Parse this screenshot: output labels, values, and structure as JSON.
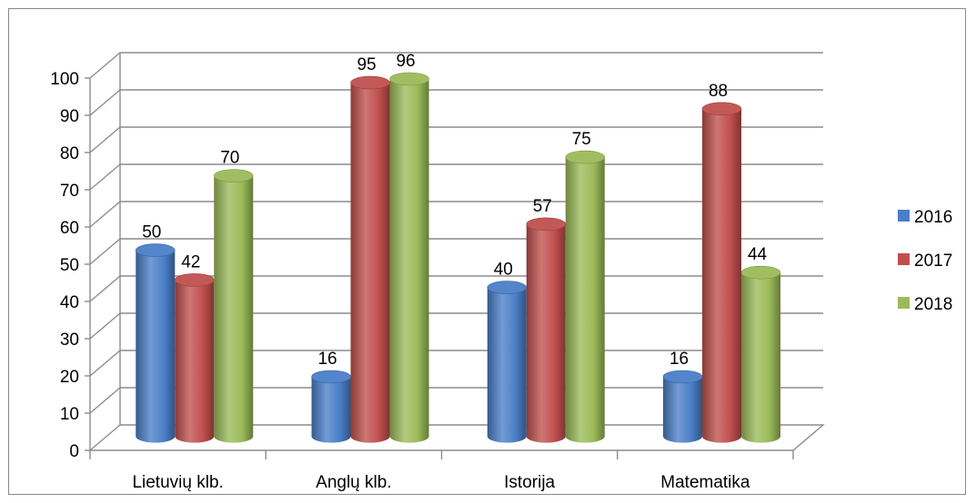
{
  "chart_data": {
    "type": "bar",
    "title": "",
    "xlabel": "",
    "ylabel": "",
    "ylim": [
      0,
      100
    ],
    "yticks": [
      0,
      10,
      20,
      30,
      40,
      50,
      60,
      70,
      80,
      90,
      100
    ],
    "grid": true,
    "legend_position": "right",
    "categories": [
      "Lietuvių klb.",
      "Anglų klb.",
      "Istorija",
      "Matematika"
    ],
    "series": [
      {
        "name": "2016",
        "color": "#4a7fc8",
        "values": [
          50,
          16,
          40,
          16
        ]
      },
      {
        "name": "2017",
        "color": "#c0504d",
        "values": [
          42,
          95,
          57,
          88
        ]
      },
      {
        "name": "2018",
        "color": "#9bbb59",
        "values": [
          70,
          96,
          75,
          44
        ]
      }
    ]
  }
}
